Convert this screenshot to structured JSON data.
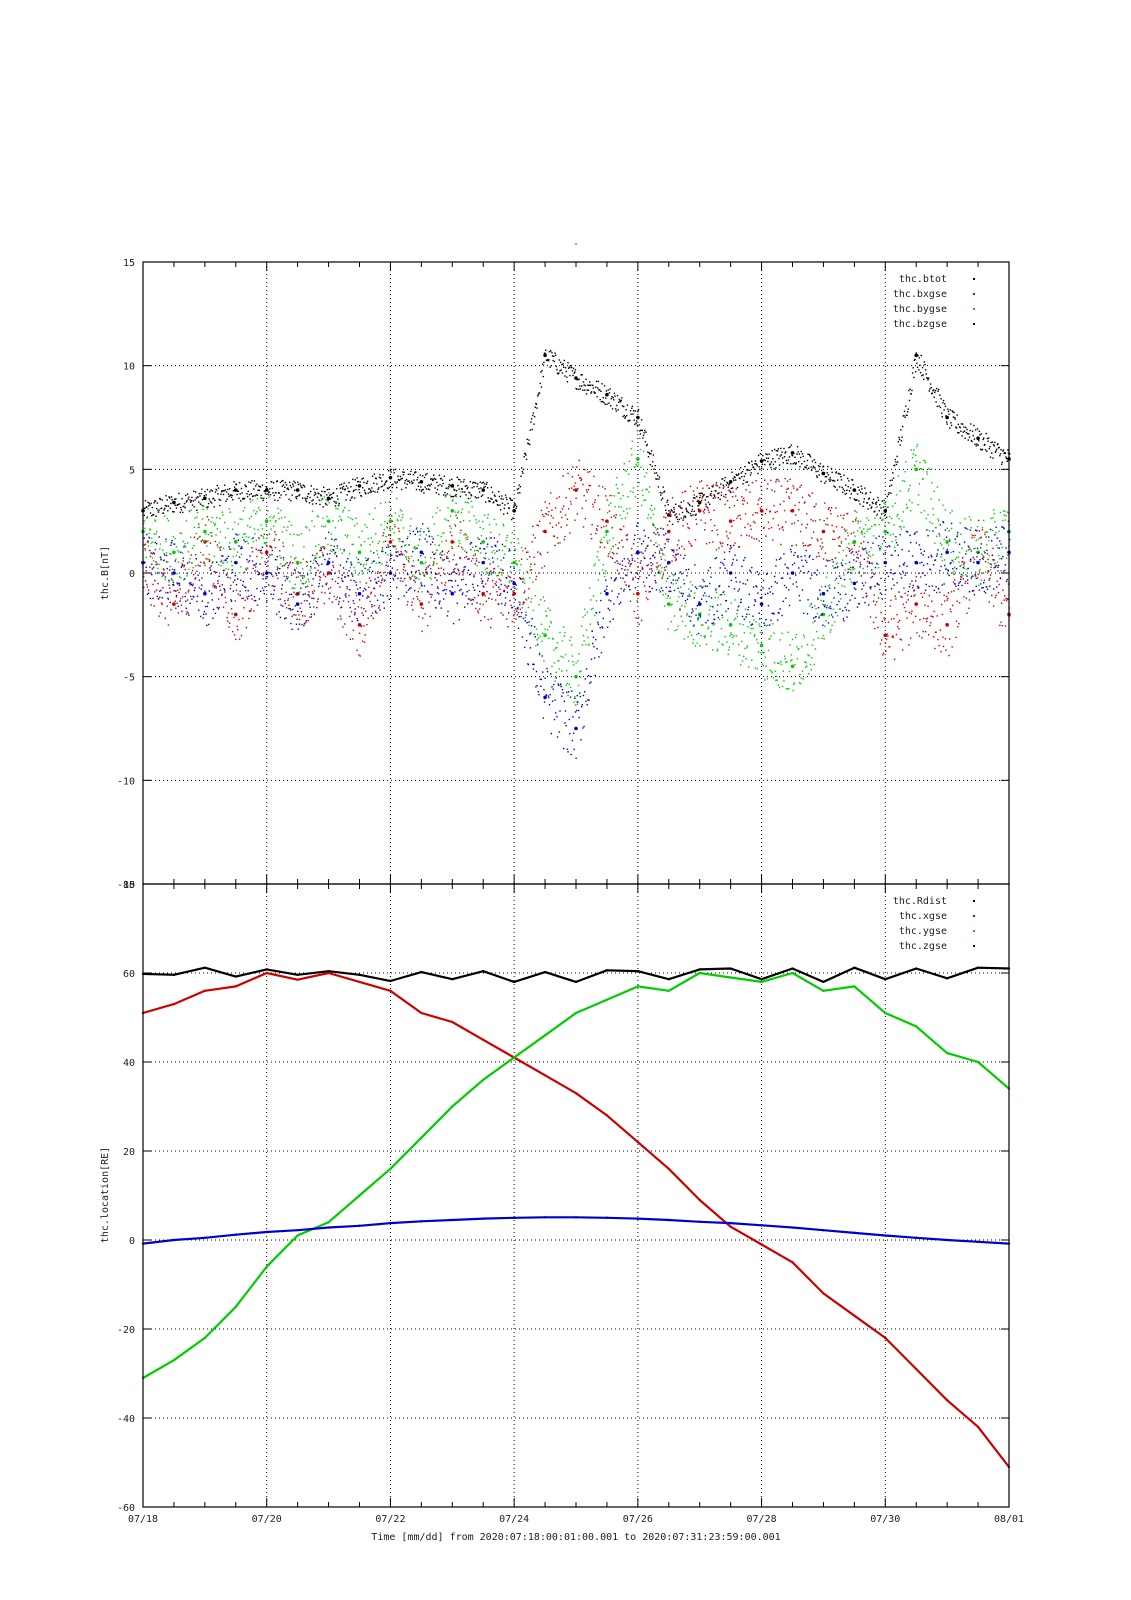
{
  "title": "-",
  "xlabel": "Time [mm/dd]  from 2020:07:18:00:01:00.001  to  2020:07:31:23:59:00.001",
  "x_tick_labels": [
    "07/18",
    "07/20",
    "07/22",
    "07/24",
    "07/26",
    "07/28",
    "07/30",
    "08/01"
  ],
  "colors": {
    "black": "#000000",
    "red": "#cc0000",
    "green": "#00cc00",
    "blue": "#0000cc"
  },
  "chart_data": [
    {
      "type": "scatter",
      "ylabel": "thc.B[nT]",
      "ylim": [
        -15,
        15
      ],
      "yticks": [
        -15,
        -10,
        -5,
        0,
        5,
        10,
        15
      ],
      "grid": true,
      "legend_position": "top-right",
      "x_unit": "days since 07/18",
      "x": [
        0,
        0.5,
        1,
        1.5,
        2,
        2.5,
        3,
        3.5,
        4,
        4.5,
        5,
        5.5,
        6,
        6.5,
        7,
        7.5,
        8,
        8.5,
        9,
        9.5,
        10,
        10.5,
        11,
        11.5,
        12,
        12.5,
        13,
        13.5,
        14
      ],
      "series": [
        {
          "name": "thc.btot",
          "color": "#000000",
          "values": [
            3.0,
            3.4,
            3.6,
            4.0,
            4.0,
            4.0,
            3.6,
            4.2,
            4.6,
            4.4,
            4.2,
            4.0,
            3.0,
            10.5,
            9.4,
            8.6,
            7.5,
            2.8,
            3.4,
            4.4,
            5.4,
            5.8,
            4.8,
            4.0,
            3.0,
            10.5,
            7.5,
            6.5,
            5.5
          ]
        },
        {
          "name": "thc.bxgse",
          "color": "#cc0000",
          "values": [
            0.5,
            -1.5,
            1.5,
            -2.0,
            1.0,
            -1.0,
            0.0,
            -2.5,
            1.5,
            -1.5,
            1.5,
            -1.0,
            -1.0,
            2.0,
            4.0,
            2.5,
            -1.0,
            2.0,
            3.0,
            2.5,
            3.0,
            3.0,
            2.0,
            1.5,
            -3.0,
            -1.5,
            -2.5,
            1.0,
            -2.0
          ]
        },
        {
          "name": "thc.bygse",
          "color": "#00cc00",
          "values": [
            2.0,
            1.0,
            2.0,
            1.5,
            2.5,
            0.5,
            2.5,
            1.0,
            2.5,
            0.5,
            3.0,
            1.5,
            0.5,
            -3.0,
            -5.0,
            2.0,
            5.5,
            -1.5,
            -2.0,
            -2.5,
            -3.5,
            -4.5,
            -2.0,
            1.5,
            2.0,
            5.0,
            1.5,
            1.0,
            2.0
          ]
        },
        {
          "name": "thc.bzgse",
          "color": "#0000cc",
          "values": [
            0.5,
            0.0,
            -1.0,
            0.5,
            0.0,
            -1.5,
            0.5,
            -1.0,
            0.0,
            1.0,
            -1.0,
            0.5,
            -0.5,
            -6.0,
            -7.5,
            -1.0,
            1.0,
            0.5,
            -1.5,
            0.0,
            -1.5,
            0.0,
            -1.0,
            -0.5,
            0.5,
            0.5,
            1.0,
            0.5,
            1.0
          ]
        }
      ]
    },
    {
      "type": "line",
      "ylabel": "thc.location[RE]",
      "ylim": [
        -60,
        80
      ],
      "yticks": [
        -60,
        -40,
        -20,
        0,
        20,
        40,
        60,
        80
      ],
      "grid": true,
      "legend_position": "top-right",
      "x_unit": "days since 07/18",
      "x": [
        0,
        0.5,
        1,
        1.5,
        2,
        2.5,
        3,
        3.5,
        4,
        4.5,
        5,
        5.5,
        6,
        6.5,
        7,
        7.5,
        8,
        8.5,
        9,
        9.5,
        10,
        10.5,
        11,
        11.5,
        12,
        12.5,
        13,
        13.5,
        14
      ],
      "series": [
        {
          "name": "thc.Rdist",
          "color": "#000000",
          "values": [
            59.8,
            59.6,
            61.2,
            59.2,
            60.8,
            59.6,
            60.4,
            59.6,
            58.2,
            60.2,
            58.6,
            60.4,
            58.0,
            60.2,
            58.0,
            60.6,
            60.4,
            58.6,
            60.8,
            61.0,
            58.6,
            61.0,
            58.0,
            61.2,
            58.6,
            61.0,
            58.8,
            61.2,
            61.0
          ]
        },
        {
          "name": "thc.xgse",
          "color": "#cc0000",
          "values": [
            51,
            53,
            56,
            57,
            60,
            58.5,
            60,
            58,
            56,
            51,
            49,
            45,
            41,
            37,
            33,
            28,
            22,
            16,
            9,
            3,
            -1,
            -5,
            -12,
            -17,
            -22,
            -29,
            -36,
            -42,
            -51
          ]
        },
        {
          "name": "thc.ygse",
          "color": "#00cc00",
          "values": [
            -31,
            -27,
            -22,
            -15,
            -6,
            1,
            4,
            10,
            16,
            23,
            30,
            36,
            41,
            46,
            51,
            54,
            57,
            56,
            60,
            59,
            58,
            60,
            56,
            57,
            51,
            48,
            42,
            40,
            34
          ]
        },
        {
          "name": "thc.zgse",
          "color": "#0000cc",
          "values": [
            -0.8,
            0.0,
            0.5,
            1.2,
            1.8,
            2.2,
            2.8,
            3.2,
            3.8,
            4.2,
            4.5,
            4.8,
            5.0,
            5.1,
            5.1,
            5.0,
            4.8,
            4.5,
            4.1,
            3.8,
            3.3,
            2.8,
            2.2,
            1.6,
            1.0,
            0.5,
            0.0,
            -0.4,
            -0.8
          ]
        }
      ]
    }
  ]
}
